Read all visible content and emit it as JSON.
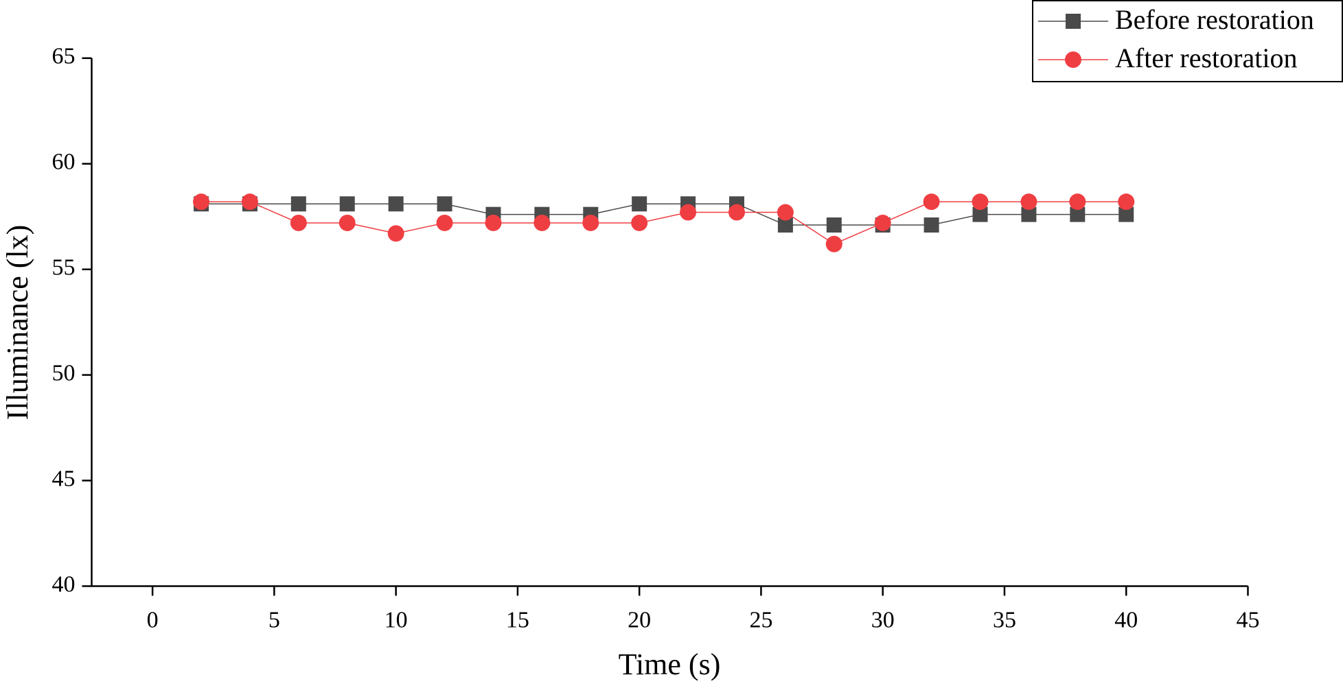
{
  "chart_data": {
    "type": "line",
    "x_label": "Time (s)",
    "y_label": "Illuminance (lx)",
    "x": [
      2,
      4,
      6,
      8,
      10,
      12,
      14,
      16,
      18,
      20,
      22,
      24,
      26,
      28,
      30,
      32,
      34,
      36,
      38,
      40
    ],
    "series": [
      {
        "name": "Before restoration",
        "color": "#4a4a4a",
        "marker": "square",
        "values": [
          58.1,
          58.1,
          58.1,
          58.1,
          58.1,
          58.1,
          57.6,
          57.6,
          57.6,
          58.1,
          58.1,
          58.1,
          57.1,
          57.1,
          57.1,
          57.1,
          57.6,
          57.6,
          57.6,
          57.6
        ]
      },
      {
        "name": "After restoration",
        "color": "#ef3e42",
        "marker": "circle",
        "values": [
          58.2,
          58.2,
          57.2,
          57.2,
          56.7,
          57.2,
          57.2,
          57.2,
          57.2,
          57.2,
          57.7,
          57.7,
          57.7,
          56.2,
          57.2,
          58.2,
          58.2,
          58.2,
          58.2,
          58.2
        ]
      }
    ],
    "xlim": [
      -2.5,
      45
    ],
    "xticks": [
      0,
      5,
      10,
      15,
      20,
      25,
      30,
      35,
      40,
      45
    ],
    "ylim": [
      40,
      65
    ],
    "yticks": [
      40,
      45,
      50,
      55,
      60,
      65
    ],
    "legend": "top-right"
  }
}
